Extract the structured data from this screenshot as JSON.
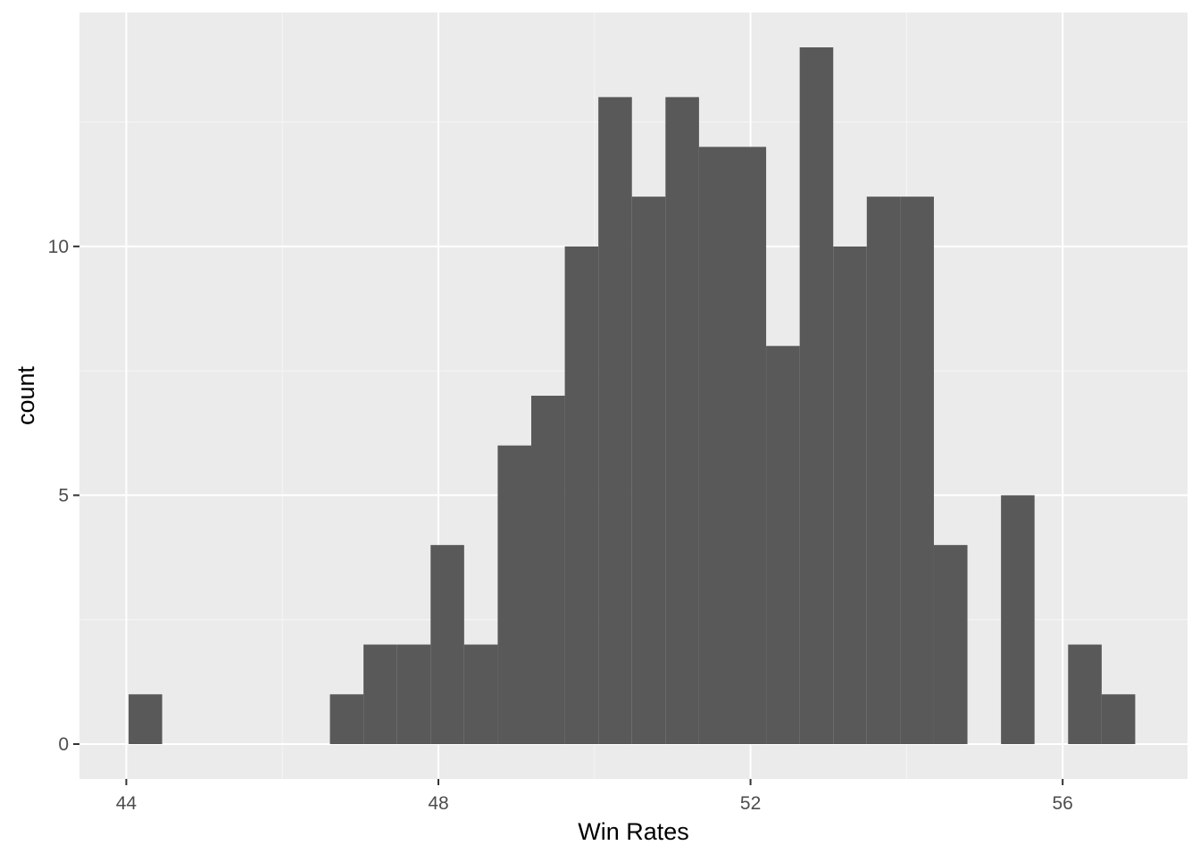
{
  "chart_data": {
    "type": "bar",
    "subtype": "histogram",
    "title": "",
    "xlabel": "Win Rates",
    "ylabel": "count",
    "xlim": [
      43.4,
      57.6
    ],
    "ylim": [
      -0.7,
      14.7
    ],
    "x_ticks": [
      44,
      48,
      52,
      56
    ],
    "x_tick_labels": [
      "44",
      "48",
      "52",
      "56"
    ],
    "y_ticks": [
      0,
      5,
      10
    ],
    "y_tick_labels": [
      "0",
      "5",
      "10"
    ],
    "grid": true,
    "bins": [
      {
        "x0": 44.03,
        "x1": 44.46,
        "count": 1
      },
      {
        "x0": 44.46,
        "x1": 44.89,
        "count": 0
      },
      {
        "x0": 44.89,
        "x1": 45.32,
        "count": 0
      },
      {
        "x0": 45.32,
        "x1": 45.75,
        "count": 0
      },
      {
        "x0": 45.75,
        "x1": 46.18,
        "count": 0
      },
      {
        "x0": 46.18,
        "x1": 46.61,
        "count": 0
      },
      {
        "x0": 46.61,
        "x1": 47.04,
        "count": 1
      },
      {
        "x0": 47.04,
        "x1": 47.47,
        "count": 2
      },
      {
        "x0": 47.47,
        "x1": 47.9,
        "count": 2
      },
      {
        "x0": 47.9,
        "x1": 48.33,
        "count": 4
      },
      {
        "x0": 48.33,
        "x1": 48.76,
        "count": 2
      },
      {
        "x0": 48.76,
        "x1": 49.19,
        "count": 6
      },
      {
        "x0": 49.19,
        "x1": 49.62,
        "count": 7
      },
      {
        "x0": 49.62,
        "x1": 50.05,
        "count": 10
      },
      {
        "x0": 50.05,
        "x1": 50.48,
        "count": 13
      },
      {
        "x0": 50.48,
        "x1": 50.91,
        "count": 11
      },
      {
        "x0": 50.91,
        "x1": 51.34,
        "count": 13
      },
      {
        "x0": 51.34,
        "x1": 51.77,
        "count": 12
      },
      {
        "x0": 51.77,
        "x1": 52.2,
        "count": 12
      },
      {
        "x0": 52.2,
        "x1": 52.63,
        "count": 8
      },
      {
        "x0": 52.63,
        "x1": 53.06,
        "count": 14
      },
      {
        "x0": 53.06,
        "x1": 53.49,
        "count": 10
      },
      {
        "x0": 53.49,
        "x1": 53.92,
        "count": 11
      },
      {
        "x0": 53.92,
        "x1": 54.35,
        "count": 11
      },
      {
        "x0": 54.35,
        "x1": 54.78,
        "count": 4
      },
      {
        "x0": 54.78,
        "x1": 55.21,
        "count": 0
      },
      {
        "x0": 55.21,
        "x1": 55.64,
        "count": 5
      },
      {
        "x0": 55.64,
        "x1": 56.07,
        "count": 0
      },
      {
        "x0": 56.07,
        "x1": 56.5,
        "count": 2
      },
      {
        "x0": 56.5,
        "x1": 56.93,
        "count": 1
      }
    ],
    "colors": {
      "panel_background": "#ebebeb",
      "grid_major": "#ffffff",
      "grid_minor": "#f5f5f5",
      "bar_fill": "#595959",
      "axis_text": "#4d4d4d",
      "axis_title": "#000000"
    }
  }
}
